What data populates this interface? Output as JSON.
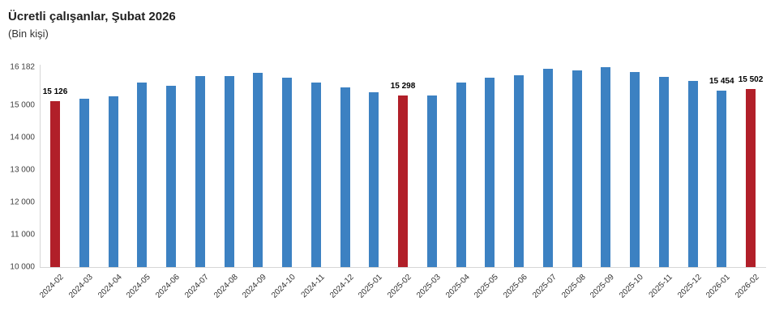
{
  "header": {
    "title": "Ücretli çalışanlar, Şubat 2026",
    "subtitle": "(Bin kişi)"
  },
  "chart_data": {
    "type": "bar",
    "title": "Ücretli çalışanlar, Şubat 2026",
    "subtitle": "(Bin kişi)",
    "xlabel": "",
    "ylabel": "",
    "categories": [
      "2024-02",
      "2024-03",
      "2024-04",
      "2024-05",
      "2024-06",
      "2024-07",
      "2024-08",
      "2024-09",
      "2024-10",
      "2024-11",
      "2024-12",
      "2025-01",
      "2025-02",
      "2025-03",
      "2025-04",
      "2025-05",
      "2025-06",
      "2025-07",
      "2025-08",
      "2025-09",
      "2025-10",
      "2025-11",
      "2025-12",
      "2026-01",
      "2026-02"
    ],
    "values": [
      15126,
      15200,
      15285,
      15700,
      15590,
      15890,
      15905,
      16005,
      15840,
      15700,
      15550,
      15410,
      15298,
      15300,
      15700,
      15850,
      15925,
      16115,
      16075,
      16182,
      16030,
      15885,
      15740,
      15454,
      15502
    ],
    "bar_value_labels": {
      "0": "15 126",
      "12": "15 298",
      "23": "15 454",
      "24": "15 502"
    },
    "highlight_indices": [
      0,
      12,
      24
    ],
    "colors": {
      "bar": "#3c81c2",
      "highlight": "#b11f29",
      "axis": "#d6d6d6"
    },
    "yticks": [
      16182,
      15000,
      14000,
      13000,
      12000,
      11000,
      10000
    ],
    "ytick_labels": [
      "16 182",
      "15 000",
      "14 000",
      "13 000",
      "12 000",
      "11 000",
      "10 000"
    ],
    "ylim": [
      10000,
      16182
    ],
    "grid": false,
    "legend": false
  }
}
